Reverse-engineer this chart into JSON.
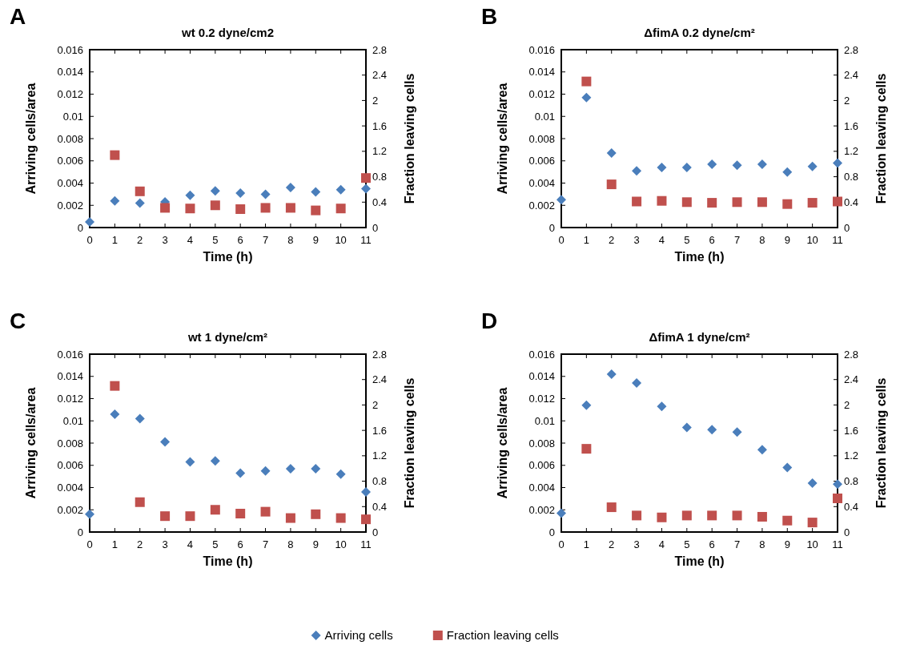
{
  "chart_data": [
    {
      "type": "scatter",
      "title": "wt 0.2 dyne/cm2",
      "xlabel": "Time (h)",
      "ylabel": "Arriving cells/area",
      "y2label": "Fraction leaving cells",
      "annotations": [
        "A"
      ],
      "x": [
        0,
        1,
        2,
        3,
        4,
        5,
        6,
        7,
        8,
        9,
        10,
        11
      ],
      "xlim": [
        0,
        11
      ],
      "xticks": [
        0,
        1,
        2,
        3,
        4,
        5,
        6,
        7,
        8,
        9,
        10,
        11
      ],
      "ylim": [
        0,
        0.016
      ],
      "yticks": [
        0,
        0.002,
        0.004,
        0.006,
        0.008,
        0.01,
        0.012,
        0.014,
        0.016
      ],
      "y2lim": [
        0,
        2.8
      ],
      "y2ticks": [
        0,
        0.4,
        0.8,
        1.2,
        1.6,
        2,
        2.4,
        2.8
      ],
      "legend": false,
      "series": [
        {
          "color": "#4a7ebb",
          "marker": "diamond",
          "values": [
            0.0005,
            0.0024,
            0.0022,
            0.0023,
            0.0029,
            0.0033,
            0.0031,
            0.003,
            0.0036,
            0.0032,
            0.0034,
            0.0035
          ]
        },
        {
          "color": "#c0504d",
          "marker": "square",
          "axis": "y2",
          "values": [
            null,
            1.14,
            0.57,
            0.31,
            0.3,
            0.35,
            0.29,
            0.31,
            0.31,
            0.27,
            0.3,
            0.78
          ]
        }
      ]
    },
    {
      "type": "scatter",
      "title": "ΔfimA 0.2 dyne/cm²",
      "xlabel": "Time (h)",
      "ylabel": "Arriving cells/area",
      "y2label": "Fraction leaving cells",
      "annotations": [
        "B"
      ],
      "x": [
        0,
        1,
        2,
        3,
        4,
        5,
        6,
        7,
        8,
        9,
        10,
        11
      ],
      "xlim": [
        0,
        11
      ],
      "xticks": [
        0,
        1,
        2,
        3,
        4,
        5,
        6,
        7,
        8,
        9,
        10,
        11
      ],
      "ylim": [
        0,
        0.016
      ],
      "yticks": [
        0,
        0.002,
        0.004,
        0.006,
        0.008,
        0.01,
        0.012,
        0.014,
        0.016
      ],
      "y2lim": [
        0,
        2.8
      ],
      "y2ticks": [
        0,
        0.4,
        0.8,
        1.2,
        1.6,
        2,
        2.4,
        2.8
      ],
      "legend": false,
      "series": [
        {
          "color": "#4a7ebb",
          "marker": "diamond",
          "values": [
            0.0025,
            0.0117,
            0.0067,
            0.0051,
            0.0054,
            0.0054,
            0.0057,
            0.0056,
            0.0057,
            0.005,
            0.0055,
            0.0058
          ]
        },
        {
          "color": "#c0504d",
          "marker": "square",
          "axis": "y2",
          "values": [
            null,
            2.3,
            0.68,
            0.41,
            0.42,
            0.4,
            0.39,
            0.4,
            0.4,
            0.37,
            0.39,
            0.41
          ]
        }
      ]
    },
    {
      "type": "scatter",
      "title": "wt 1 dyne/cm²",
      "xlabel": "Time (h)",
      "ylabel": "Arriving cells/area",
      "y2label": "Fraction leaving cells",
      "annotations": [
        "C"
      ],
      "x": [
        0,
        1,
        2,
        3,
        4,
        5,
        6,
        7,
        8,
        9,
        10,
        11
      ],
      "xlim": [
        0,
        11
      ],
      "xticks": [
        0,
        1,
        2,
        3,
        4,
        5,
        6,
        7,
        8,
        9,
        10,
        11
      ],
      "ylim": [
        0,
        0.016
      ],
      "yticks": [
        0,
        0.002,
        0.004,
        0.006,
        0.008,
        0.01,
        0.012,
        0.014,
        0.016
      ],
      "y2lim": [
        0,
        2.8
      ],
      "y2ticks": [
        0,
        0.4,
        0.8,
        1.2,
        1.6,
        2,
        2.4,
        2.8
      ],
      "legend": false,
      "series": [
        {
          "color": "#4a7ebb",
          "marker": "diamond",
          "values": [
            0.0016,
            0.0106,
            0.0102,
            0.0081,
            0.0063,
            0.0064,
            0.0053,
            0.0055,
            0.0057,
            0.0057,
            0.0052,
            0.0036
          ]
        },
        {
          "color": "#c0504d",
          "marker": "square",
          "axis": "y2",
          "values": [
            null,
            2.3,
            0.47,
            0.25,
            0.25,
            0.35,
            0.29,
            0.32,
            0.22,
            0.28,
            0.22,
            0.2
          ]
        }
      ]
    },
    {
      "type": "scatter",
      "title": "ΔfimA 1 dyne/cm²",
      "xlabel": "Time (h)",
      "ylabel": "Arriving cells/area",
      "y2label": "Fraction leaving cells",
      "annotations": [
        "D"
      ],
      "x": [
        0,
        1,
        2,
        3,
        4,
        5,
        6,
        7,
        8,
        9,
        10,
        11
      ],
      "xlim": [
        0,
        11
      ],
      "xticks": [
        0,
        1,
        2,
        3,
        4,
        5,
        6,
        7,
        8,
        9,
        10,
        11
      ],
      "ylim": [
        0,
        0.016
      ],
      "yticks": [
        0,
        0.002,
        0.004,
        0.006,
        0.008,
        0.01,
        0.012,
        0.014,
        0.016
      ],
      "y2lim": [
        0,
        2.8
      ],
      "y2ticks": [
        0,
        0.4,
        0.8,
        1.2,
        1.6,
        2,
        2.4,
        2.8
      ],
      "legend": "bottom",
      "series": [
        {
          "name": "Arriving cells",
          "color": "#4a7ebb",
          "marker": "diamond",
          "values": [
            0.0017,
            0.0114,
            0.0142,
            0.0134,
            0.0113,
            0.0094,
            0.0092,
            0.009,
            0.0074,
            0.0058,
            0.0044,
            0.0043
          ]
        },
        {
          "name": "Fraction leaving cells",
          "color": "#c0504d",
          "marker": "square",
          "axis": "y2",
          "values": [
            null,
            1.31,
            0.39,
            0.26,
            0.23,
            0.26,
            0.26,
            0.26,
            0.24,
            0.18,
            0.15,
            0.53
          ]
        }
      ]
    }
  ]
}
